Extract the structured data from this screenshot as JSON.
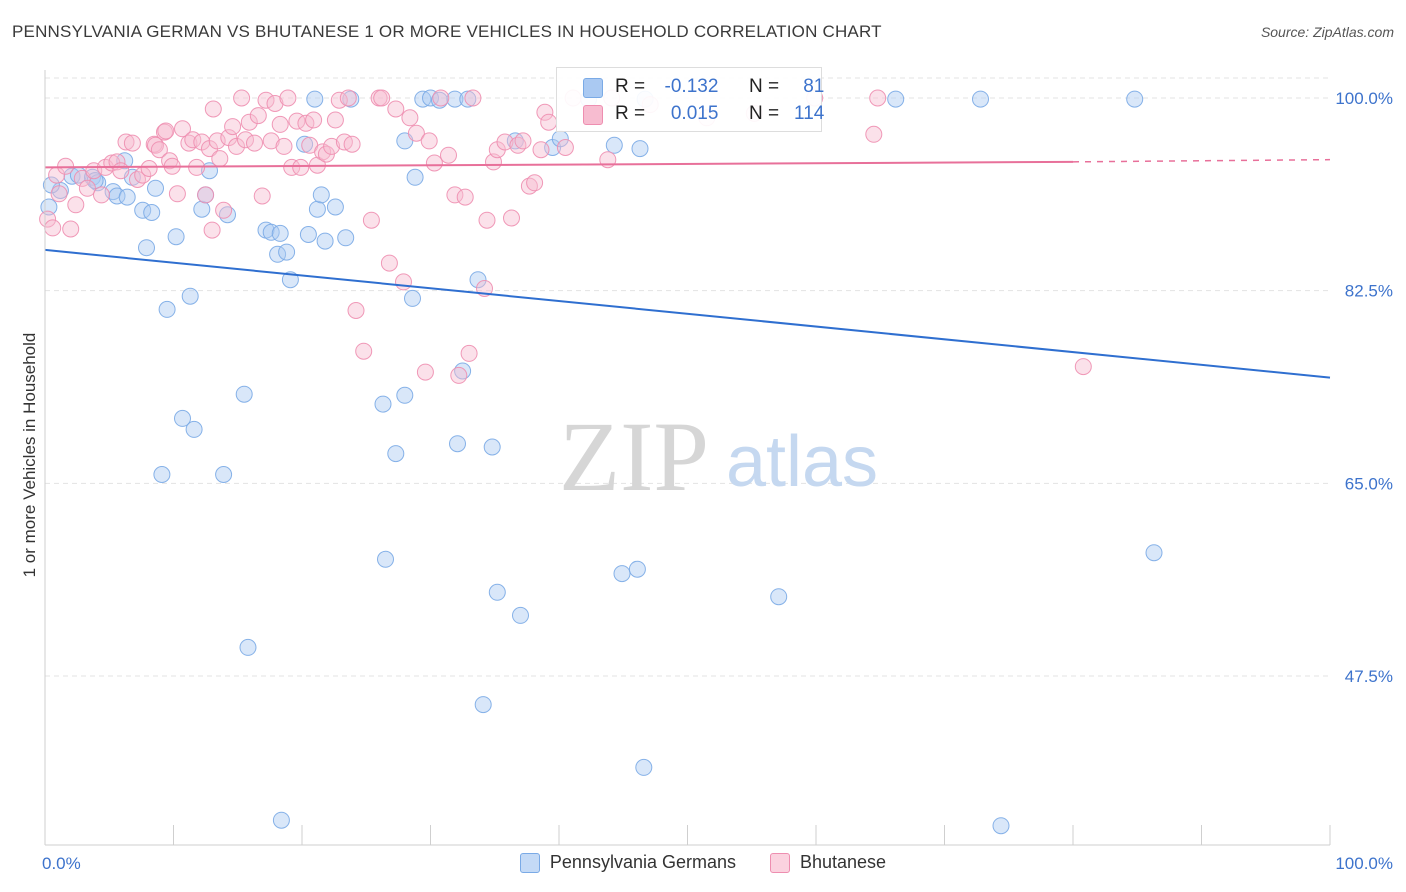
{
  "title": "PENNSYLVANIA GERMAN VS BHUTANESE 1 OR MORE VEHICLES IN HOUSEHOLD CORRELATION CHART",
  "source": "Source: ZipAtlas.com",
  "watermark": {
    "zip": "ZIP",
    "atlas": "atlas"
  },
  "colors": {
    "blue": "#7aaae6",
    "blue_fill": "#aac9f2",
    "blue_line": "#2f6fd0",
    "pink": "#ee8eb0",
    "pink_fill": "#f7bcd0",
    "pink_line": "#e8709a",
    "tick_text": "#3d73cc"
  },
  "legend": {
    "r_label": "R =",
    "n_label": "N =",
    "series": [
      {
        "name": "Pennsylvania Germans",
        "r": "-0.132",
        "n": "81"
      },
      {
        "name": "Bhutanese",
        "r": "0.015",
        "n": "114"
      }
    ]
  },
  "chart_data": {
    "type": "scatter",
    "title": "PENNSYLVANIA GERMAN VS BHUTANESE 1 OR MORE VEHICLES IN HOUSEHOLD CORRELATION CHART",
    "xlabel": "",
    "ylabel": "1 or more Vehicles in Household",
    "xlim": [
      0,
      100
    ],
    "ylim": [
      32,
      103
    ],
    "x_tick_labels": [
      "0.0%",
      "100.0%"
    ],
    "y_ticks": [
      100,
      82.5,
      65,
      47.5
    ],
    "y_tick_labels": [
      "100.0%",
      "82.5%",
      "65.0%",
      "47.5%"
    ],
    "grid": true,
    "series": [
      {
        "name": "Pennsylvania Germans",
        "trend": {
          "x": [
            0,
            100
          ],
          "y": [
            86.2,
            74.6
          ]
        },
        "points": [
          [
            0.3,
            90.1
          ],
          [
            1.2,
            91.6
          ],
          [
            2.1,
            92.9
          ],
          [
            2.6,
            93.0
          ],
          [
            3.7,
            92.8
          ],
          [
            4.1,
            92.3
          ],
          [
            5.3,
            91.5
          ],
          [
            5.6,
            91.1
          ],
          [
            6.2,
            94.3
          ],
          [
            6.4,
            91.0
          ],
          [
            6.8,
            92.8
          ],
          [
            7.6,
            89.8
          ],
          [
            7.9,
            86.4
          ],
          [
            8.3,
            89.6
          ],
          [
            8.6,
            91.8
          ],
          [
            9.5,
            80.8
          ],
          [
            10.2,
            87.4
          ],
          [
            10.7,
            70.9
          ],
          [
            11.3,
            82.0
          ],
          [
            11.6,
            69.9
          ],
          [
            12.2,
            89.9
          ],
          [
            12.5,
            91.2
          ],
          [
            12.8,
            93.4
          ],
          [
            14.2,
            89.4
          ],
          [
            15.5,
            73.1
          ],
          [
            15.8,
            50.1
          ],
          [
            17.2,
            88.0
          ],
          [
            17.6,
            87.8
          ],
          [
            18.3,
            87.7
          ],
          [
            18.1,
            85.8
          ],
          [
            18.8,
            86.0
          ],
          [
            19.1,
            83.5
          ],
          [
            20.2,
            95.8
          ],
          [
            20.5,
            87.6
          ],
          [
            21.0,
            99.9
          ],
          [
            21.8,
            87.0
          ],
          [
            21.2,
            89.9
          ],
          [
            22.6,
            90.1
          ],
          [
            23.4,
            87.3
          ],
          [
            23.8,
            99.9
          ],
          [
            26.3,
            72.2
          ],
          [
            26.5,
            58.1
          ],
          [
            27.3,
            67.7
          ],
          [
            28.0,
            73.0
          ],
          [
            28.6,
            81.8
          ],
          [
            28.8,
            92.8
          ],
          [
            29.4,
            99.9
          ],
          [
            30.0,
            100.0
          ],
          [
            30.7,
            99.8
          ],
          [
            31.9,
            99.9
          ],
          [
            32.1,
            68.6
          ],
          [
            32.5,
            75.2
          ],
          [
            32.9,
            99.9
          ],
          [
            33.7,
            83.5
          ],
          [
            34.1,
            44.9
          ],
          [
            34.8,
            68.3
          ],
          [
            35.2,
            55.1
          ],
          [
            36.6,
            96.1
          ],
          [
            37.0,
            53.0
          ],
          [
            39.5,
            95.5
          ],
          [
            40.1,
            96.3
          ],
          [
            42.3,
            99.9
          ],
          [
            44.9,
            56.8
          ],
          [
            44.3,
            95.7
          ],
          [
            46.1,
            57.2
          ],
          [
            46.3,
            95.4
          ],
          [
            46.7,
            99.9
          ],
          [
            46.6,
            39.2
          ],
          [
            57.1,
            54.7
          ],
          [
            66.2,
            99.9
          ],
          [
            72.8,
            99.9
          ],
          [
            84.8,
            99.9
          ],
          [
            86.3,
            58.7
          ],
          [
            74.4,
            33.9
          ],
          [
            18.4,
            34.4
          ],
          [
            13.9,
            65.8
          ],
          [
            9.1,
            65.8
          ],
          [
            21.5,
            91.2
          ],
          [
            28.0,
            96.1
          ],
          [
            0.5,
            92.1
          ],
          [
            3.9,
            92.5
          ]
        ]
      },
      {
        "name": "Bhutanese",
        "trend": {
          "x": [
            0,
            80
          ],
          "y": [
            93.7,
            94.2
          ]
        },
        "trend_dashed": {
          "x": [
            80,
            100
          ],
          "y": [
            94.2,
            94.4
          ]
        },
        "points": [
          [
            0.2,
            89.0
          ],
          [
            0.6,
            88.2
          ],
          [
            0.9,
            93.0
          ],
          [
            1.1,
            91.3
          ],
          [
            1.6,
            93.8
          ],
          [
            2.0,
            88.1
          ],
          [
            2.4,
            90.3
          ],
          [
            2.9,
            92.7
          ],
          [
            3.3,
            91.8
          ],
          [
            3.8,
            93.4
          ],
          [
            4.4,
            91.2
          ],
          [
            4.7,
            93.7
          ],
          [
            5.2,
            94.1
          ],
          [
            5.6,
            94.2
          ],
          [
            5.9,
            93.4
          ],
          [
            6.3,
            96.0
          ],
          [
            6.8,
            95.9
          ],
          [
            7.2,
            92.6
          ],
          [
            7.6,
            93.0
          ],
          [
            8.1,
            93.6
          ],
          [
            8.5,
            95.8
          ],
          [
            8.6,
            95.7
          ],
          [
            8.9,
            95.3
          ],
          [
            9.3,
            96.9
          ],
          [
            9.7,
            94.3
          ],
          [
            9.9,
            93.8
          ],
          [
            10.3,
            91.3
          ],
          [
            10.7,
            97.2
          ],
          [
            11.2,
            95.9
          ],
          [
            11.5,
            96.2
          ],
          [
            11.8,
            93.7
          ],
          [
            12.2,
            96.0
          ],
          [
            12.5,
            91.2
          ],
          [
            12.8,
            95.4
          ],
          [
            13.1,
            99.0
          ],
          [
            13.4,
            96.1
          ],
          [
            13.6,
            94.5
          ],
          [
            13.9,
            89.8
          ],
          [
            14.3,
            96.4
          ],
          [
            14.6,
            97.4
          ],
          [
            14.9,
            95.6
          ],
          [
            15.3,
            100.0
          ],
          [
            15.6,
            96.2
          ],
          [
            15.9,
            97.8
          ],
          [
            16.3,
            95.9
          ],
          [
            16.6,
            98.4
          ],
          [
            16.9,
            91.1
          ],
          [
            17.2,
            99.8
          ],
          [
            17.6,
            96.1
          ],
          [
            17.9,
            99.5
          ],
          [
            18.3,
            97.6
          ],
          [
            18.6,
            95.6
          ],
          [
            18.9,
            100.0
          ],
          [
            19.2,
            93.7
          ],
          [
            19.6,
            97.9
          ],
          [
            19.9,
            93.7
          ],
          [
            20.3,
            97.7
          ],
          [
            20.6,
            95.7
          ],
          [
            20.9,
            98.0
          ],
          [
            21.2,
            93.9
          ],
          [
            21.6,
            95.1
          ],
          [
            21.9,
            94.9
          ],
          [
            22.3,
            95.6
          ],
          [
            22.6,
            98.0
          ],
          [
            22.9,
            99.8
          ],
          [
            23.3,
            96.0
          ],
          [
            23.6,
            100.0
          ],
          [
            23.9,
            95.8
          ],
          [
            24.2,
            80.7
          ],
          [
            24.8,
            77.0
          ],
          [
            25.4,
            88.9
          ],
          [
            26.0,
            100.0
          ],
          [
            26.2,
            100.0
          ],
          [
            26.8,
            85.0
          ],
          [
            27.3,
            99.0
          ],
          [
            27.9,
            83.3
          ],
          [
            28.4,
            98.2
          ],
          [
            28.9,
            96.8
          ],
          [
            29.6,
            75.1
          ],
          [
            29.9,
            96.1
          ],
          [
            30.3,
            94.1
          ],
          [
            30.8,
            100.0
          ],
          [
            31.4,
            94.8
          ],
          [
            31.9,
            91.2
          ],
          [
            32.2,
            74.8
          ],
          [
            32.7,
            91.0
          ],
          [
            33.0,
            76.8
          ],
          [
            33.3,
            100.0
          ],
          [
            34.2,
            82.7
          ],
          [
            34.4,
            88.9
          ],
          [
            34.9,
            94.2
          ],
          [
            35.2,
            95.3
          ],
          [
            35.8,
            96.0
          ],
          [
            36.3,
            89.1
          ],
          [
            36.8,
            95.7
          ],
          [
            37.2,
            96.1
          ],
          [
            37.7,
            92.0
          ],
          [
            38.1,
            92.3
          ],
          [
            38.6,
            95.3
          ],
          [
            38.9,
            98.7
          ],
          [
            39.2,
            97.8
          ],
          [
            40.5,
            95.5
          ],
          [
            41.1,
            100.0
          ],
          [
            43.8,
            94.4
          ],
          [
            44.1,
            100.0
          ],
          [
            47.1,
            99.4
          ],
          [
            51.5,
            98.2
          ],
          [
            55.2,
            98.6
          ],
          [
            59.9,
            100.0
          ],
          [
            64.5,
            96.7
          ],
          [
            64.8,
            100.0
          ],
          [
            80.8,
            75.6
          ],
          [
            13.0,
            88.0
          ],
          [
            9.4,
            97.0
          ]
        ]
      }
    ]
  }
}
